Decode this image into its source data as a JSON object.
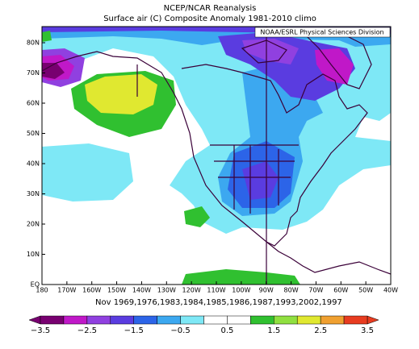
{
  "title": "NCEP/NCAR Reanalysis",
  "subtitle": "Surface air (C) Composite Anomaly 1981-2010 climo",
  "credit": "NOAA/ESRL Physical Sciences Division",
  "lat_labels": [
    "80N",
    "70N",
    "60N",
    "50N",
    "40N",
    "30N",
    "20N",
    "10N",
    "EQ"
  ],
  "lon_labels": [
    "180",
    "170W",
    "160W",
    "150W",
    "140W",
    "130W",
    "120W",
    "110W",
    "100W",
    "90W",
    "80W",
    "70W",
    "60W",
    "50W",
    "40W"
  ],
  "period": "Nov 1969,1976,1983,1984,1985,1986,1987,1993,2002,1997",
  "colorbar": {
    "labels": [
      "−3.5",
      "−2.5",
      "−1.5",
      "−0.5",
      "0.5",
      "1.5",
      "2.5",
      "3.5"
    ],
    "colors": [
      "#780070",
      "#c018c8",
      "#9040e0",
      "#5a3ce0",
      "#2c64e8",
      "#3ca8f0",
      "#7ee8f6",
      "#ffffff",
      "#ffffff",
      "#30c030",
      "#90e040",
      "#e0e830",
      "#f0a030",
      "#e83c20"
    ]
  }
}
